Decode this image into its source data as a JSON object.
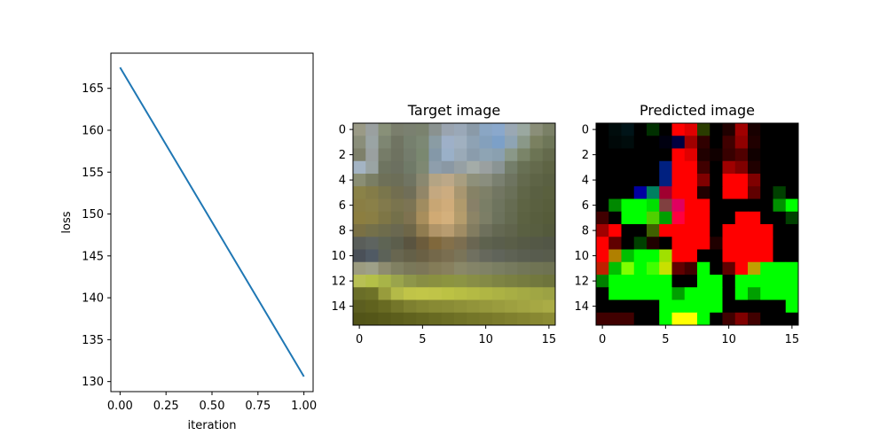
{
  "chart_data": [
    {
      "type": "line",
      "title": "",
      "xlabel": "iteration",
      "ylabel": "loss",
      "xlim": [
        -0.05,
        1.05
      ],
      "ylim": [
        128.8,
        169.2
      ],
      "x_ticks": [
        0.0,
        0.25,
        0.5,
        0.75,
        1.0
      ],
      "x_tick_labels": [
        "0.00",
        "0.25",
        "0.50",
        "0.75",
        "1.00"
      ],
      "y_ticks": [
        130,
        135,
        140,
        145,
        150,
        155,
        160,
        165
      ],
      "y_tick_labels": [
        "130",
        "135",
        "140",
        "145",
        "150",
        "155",
        "160",
        "165"
      ],
      "grid": false,
      "series": [
        {
          "x": [
            0.0,
            1.0
          ],
          "y": [
            167.5,
            130.6
          ],
          "color": "#1f77b4"
        }
      ]
    },
    {
      "type": "heatmap",
      "title": "Target image",
      "xlabel": "",
      "ylabel": "",
      "size": [
        16,
        16
      ],
      "x_ticks": [
        0,
        5,
        10,
        15
      ],
      "y_ticks": [
        0,
        2,
        4,
        6,
        8,
        10,
        12,
        14
      ],
      "rows": [
        [
          "#9a9a86",
          "#9aa0a0",
          "#889078",
          "#7a7e6c",
          "#7a8070",
          "#7a826e",
          "#8a9290",
          "#9aa4b0",
          "#9aa8b8",
          "#8a9aa8",
          "#8aa6c4",
          "#8aa8cc",
          "#9aa8b4",
          "#9aa8a0",
          "#8a8e78",
          "#7a8066"
        ],
        [
          "#8a8e7a",
          "#9aa4a4",
          "#7e8672",
          "#707462",
          "#76806e",
          "#7c8874",
          "#8a9ca4",
          "#9eb0c8",
          "#a0b0c0",
          "#8ea2b4",
          "#84a0bc",
          "#7ca0c8",
          "#8ea4b4",
          "#8a9888",
          "#7a8060",
          "#6e7658"
        ],
        [
          "#7e806a",
          "#9aa0a0",
          "#767c68",
          "#6e7260",
          "#747c6c",
          "#7a8870",
          "#8498a8",
          "#9ab0c8",
          "#9aaab8",
          "#8a9cac",
          "#8ea4b4",
          "#8aa0b0",
          "#8a9888",
          "#7a8468",
          "#6c7454",
          "#646a4c"
        ],
        [
          "#a4b4c4",
          "#9aa4a4",
          "#6e7460",
          "#6c7060",
          "#707a68",
          "#7e8872",
          "#8e9eac",
          "#8a98a4",
          "#96a0a4",
          "#a4aca8",
          "#9aa0a0",
          "#8a9494",
          "#747e6a",
          "#687054",
          "#646a4c",
          "#5e6444"
        ],
        [
          "#8a8e74",
          "#7a7e64",
          "#6e7058",
          "#6c6e58",
          "#707462",
          "#8a8870",
          "#b4a484",
          "#bca888",
          "#a89e80",
          "#8e907a",
          "#8a8e7e",
          "#7a8070",
          "#6e7460",
          "#646a4e",
          "#5e6446",
          "#5a6042"
        ],
        [
          "#8a8248",
          "#847c48",
          "#7a764c",
          "#726e50",
          "#706e58",
          "#928668",
          "#c4a880",
          "#ccac80",
          "#a89670",
          "#868266",
          "#7e8068",
          "#727662",
          "#6a7058",
          "#606648",
          "#5a6042",
          "#5a603e"
        ],
        [
          "#8a7e44",
          "#8a8048",
          "#827a4c",
          "#7a744e",
          "#7c7454",
          "#a08c60",
          "#c8a674",
          "#d0ac7a",
          "#b09a6c",
          "#888068",
          "#7a7e66",
          "#6e745e",
          "#666c52",
          "#5e6444",
          "#5a6040",
          "#585e3c"
        ],
        [
          "#8c7e40",
          "#8a7e44",
          "#7e7646",
          "#74704a",
          "#7e7250",
          "#a88e5c",
          "#d0aa74",
          "#d4b07c",
          "#b49c6c",
          "#8c8466",
          "#7c7e66",
          "#6c725c",
          "#646a50",
          "#5c6242",
          "#585e3e",
          "#565c3a"
        ],
        [
          "#7a7044",
          "#74704a",
          "#6e6c4c",
          "#6a6850",
          "#6e6648",
          "#907c50",
          "#b09468",
          "#b89c70",
          "#a08c64",
          "#827c60",
          "#6e705c",
          "#646852",
          "#60644c",
          "#5a6042",
          "#585e40",
          "#545a3c"
        ],
        [
          "#5a5e5a",
          "#5e6460",
          "#5e6454",
          "#5c5e4c",
          "#5a5440",
          "#6c5c3c",
          "#80683c",
          "#84704a",
          "#7c6e50",
          "#6a6652",
          "#5e624e",
          "#5a5e4c",
          "#5a5e48",
          "#565a46",
          "#545846",
          "#525646"
        ],
        [
          "#4a5058",
          "#505a64",
          "#5c6258",
          "#686650",
          "#646048",
          "#6a6044",
          "#74684a",
          "#7a6e50",
          "#7a7458",
          "#707060",
          "#66685c",
          "#60645a",
          "#5e6254",
          "#5a5e50",
          "#585c4e",
          "#585c4c"
        ],
        [
          "#9c9c80",
          "#9ea088",
          "#8e8c70",
          "#808062",
          "#7a785a",
          "#7c7658",
          "#847c58",
          "#88805e",
          "#8a8868",
          "#848468",
          "#808266",
          "#7a7e62",
          "#767a5e",
          "#727658",
          "#707454",
          "#6e7252"
        ],
        [
          "#b8c054",
          "#b4c048",
          "#a8b448",
          "#9aa44c",
          "#8e964a",
          "#888e44",
          "#8a9040",
          "#8c9440",
          "#8c9444",
          "#888e46",
          "#848a46",
          "#7e8444",
          "#7a8042",
          "#767c40",
          "#72783e",
          "#6e743c"
        ],
        [
          "#6a6e28",
          "#6e7228",
          "#989c3c",
          "#b4ba48",
          "#c0c448",
          "#c2c648",
          "#c0c448",
          "#bcc244",
          "#b8be44",
          "#b4ba44",
          "#b0b644",
          "#acb244",
          "#a8ae44",
          "#a4aa44",
          "#a0a644",
          "#9ca244"
        ],
        [
          "#5c5e20",
          "#60621e",
          "#686a22",
          "#74762a",
          "#7e8030",
          "#848632",
          "#888a34",
          "#8a8c36",
          "#8e9038",
          "#92943a",
          "#96983c",
          "#9a9c3e",
          "#9ea040",
          "#a2a442",
          "#a6a844",
          "#aaac46"
        ],
        [
          "#525418",
          "#545618",
          "#585a1a",
          "#5c5e1c",
          "#60621e",
          "#646620",
          "#686a22",
          "#6c6e24",
          "#707226",
          "#747628",
          "#78782a",
          "#7c7c2c",
          "#80802e",
          "#848430",
          "#888832",
          "#8c8c34"
        ]
      ]
    },
    {
      "type": "heatmap",
      "title": "Predicted image",
      "xlabel": "",
      "ylabel": "",
      "size": [
        16,
        16
      ],
      "x_ticks": [
        0,
        5,
        10,
        15
      ],
      "y_ticks": [
        0,
        2,
        4,
        6,
        8,
        10,
        12,
        14
      ],
      "rows": [
        [
          "#000000",
          "#000c0c",
          "#001418",
          "#000000",
          "#003000",
          "#000000",
          "#ff0000",
          "#e00000",
          "#2a3c00",
          "#000000",
          "#200000",
          "#a00000",
          "#180000",
          "#000000",
          "#000000",
          "#000000"
        ],
        [
          "#000000",
          "#000808",
          "#000c0c",
          "#000000",
          "#000000",
          "#000010",
          "#000040",
          "#a00000",
          "#300000",
          "#000000",
          "#400000",
          "#900000",
          "#200000",
          "#000000",
          "#000000",
          "#000000"
        ],
        [
          "#000000",
          "#000000",
          "#000000",
          "#000000",
          "#000000",
          "#000000",
          "#ff0000",
          "#e00000",
          "#200000",
          "#100000",
          "#380000",
          "#500000",
          "#100000",
          "#000000",
          "#000000",
          "#000000"
        ],
        [
          "#000000",
          "#000000",
          "#000000",
          "#000000",
          "#000000",
          "#002080",
          "#ff0000",
          "#ff0000",
          "#400000",
          "#000000",
          "#a00000",
          "#800000",
          "#200000",
          "#000000",
          "#000000",
          "#000000"
        ],
        [
          "#000000",
          "#000000",
          "#000000",
          "#000000",
          "#000000",
          "#002080",
          "#ff0000",
          "#ff0000",
          "#800000",
          "#000000",
          "#ff0000",
          "#ff0000",
          "#800000",
          "#000000",
          "#000000",
          "#000000"
        ],
        [
          "#000000",
          "#000000",
          "#000000",
          "#0000a0",
          "#008060",
          "#a00030",
          "#ff0000",
          "#ff0000",
          "#200000",
          "#000000",
          "#ff0000",
          "#ff0000",
          "#600000",
          "#000000",
          "#004000",
          "#000000"
        ],
        [
          "#000000",
          "#008800",
          "#00ff00",
          "#00ff00",
          "#00e000",
          "#804040",
          "#e00060",
          "#ff0000",
          "#ff0000",
          "#000000",
          "#000000",
          "#000000",
          "#000000",
          "#000000",
          "#009000",
          "#00ff00"
        ],
        [
          "#400000",
          "#000000",
          "#00ff00",
          "#00ff00",
          "#50d000",
          "#00a000",
          "#ff0040",
          "#ff0000",
          "#ff0000",
          "#000000",
          "#000000",
          "#ff0000",
          "#ff0000",
          "#000000",
          "#000000",
          "#004000"
        ],
        [
          "#a00000",
          "#ff0000",
          "#000000",
          "#000000",
          "#406000",
          "#ff0000",
          "#ff0000",
          "#ff0000",
          "#ff0000",
          "#000000",
          "#ff0000",
          "#ff0000",
          "#ff0000",
          "#ff0000",
          "#000000",
          "#000000"
        ],
        [
          "#ff0000",
          "#600000",
          "#000000",
          "#004000",
          "#200000",
          "#000000",
          "#ff0000",
          "#ff0000",
          "#ff0000",
          "#200000",
          "#ff0000",
          "#ff0000",
          "#ff0000",
          "#ff0000",
          "#000000",
          "#000000"
        ],
        [
          "#ff0000",
          "#b08000",
          "#00c000",
          "#00ff00",
          "#00ff00",
          "#a0e000",
          "#ff0000",
          "#ff0000",
          "#000000",
          "#000000",
          "#ff0000",
          "#ff0000",
          "#ff0000",
          "#ff0000",
          "#000000",
          "#000000"
        ],
        [
          "#c02000",
          "#00c000",
          "#80ff00",
          "#00ff00",
          "#40ff00",
          "#c8e000",
          "#600000",
          "#400000",
          "#00ff00",
          "#000000",
          "#600000",
          "#ff0000",
          "#c0a000",
          "#00ff00",
          "#00ff00",
          "#00ff00"
        ],
        [
          "#008000",
          "#00ff00",
          "#00ff00",
          "#00ff00",
          "#00ff00",
          "#00ff00",
          "#000000",
          "#000000",
          "#00ff00",
          "#00ff00",
          "#000000",
          "#00ff00",
          "#00ff00",
          "#00ff00",
          "#00ff00",
          "#00ff00"
        ],
        [
          "#000000",
          "#00ff00",
          "#00ff00",
          "#00ff00",
          "#00ff00",
          "#00ff00",
          "#00a000",
          "#00ff00",
          "#00ff00",
          "#00ff00",
          "#000000",
          "#00ff00",
          "#00a000",
          "#00ff00",
          "#00ff00",
          "#00ff00"
        ],
        [
          "#000000",
          "#000000",
          "#000000",
          "#000000",
          "#000000",
          "#00ff00",
          "#00ff00",
          "#00ff00",
          "#00ff00",
          "#00ff00",
          "#000000",
          "#000000",
          "#000000",
          "#000000",
          "#000000",
          "#00ff00"
        ],
        [
          "#400000",
          "#400000",
          "#400000",
          "#000000",
          "#000000",
          "#00ff00",
          "#ffff00",
          "#ffff00",
          "#00ff00",
          "#000000",
          "#400000",
          "#800000",
          "#400000",
          "#000000",
          "#000000",
          "#000000"
        ]
      ]
    }
  ]
}
